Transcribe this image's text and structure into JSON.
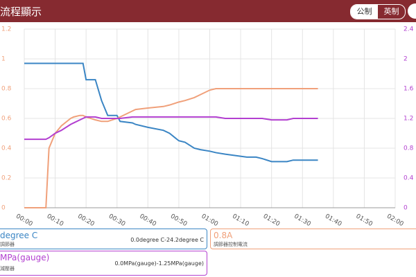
{
  "header": {
    "title": "流程顯示",
    "buttons": [
      "公制",
      "英制"
    ]
  },
  "chart_data": {
    "type": "line",
    "x": [
      0,
      7,
      8,
      10,
      12,
      15,
      16,
      18,
      19,
      20,
      23,
      25,
      27,
      30,
      31,
      35,
      36,
      40,
      45,
      47,
      50,
      52,
      55,
      57,
      60,
      62,
      65,
      72,
      75,
      77,
      80,
      83,
      85,
      87,
      95
    ],
    "xlim": [
      0,
      120
    ],
    "xticks": [
      {
        "value": 0,
        "label": "00:00"
      },
      {
        "value": 10,
        "label": "00:10"
      },
      {
        "value": 20,
        "label": "00:20"
      },
      {
        "value": 30,
        "label": "00:30"
      },
      {
        "value": 40,
        "label": "00:40"
      },
      {
        "value": 50,
        "label": "00:50"
      },
      {
        "value": 60,
        "label": "01:00"
      },
      {
        "value": 70,
        "label": "01:10"
      },
      {
        "value": 80,
        "label": "01:20"
      },
      {
        "value": 90,
        "label": "01:30"
      },
      {
        "value": 100,
        "label": "01:40"
      },
      {
        "value": 110,
        "label": "01:50"
      },
      {
        "value": 120,
        "label": "02:00"
      }
    ],
    "ylim": [
      0,
      1.2
    ],
    "yticks": [
      0,
      0.2,
      0.4,
      0.6,
      0.8,
      1,
      1.2
    ],
    "y2lim": [
      0,
      2.4
    ],
    "y2ticks": [
      0,
      0.4,
      0.8,
      1.2,
      1.6,
      2,
      2.4
    ],
    "grid": true,
    "series": [
      {
        "name": "degree C",
        "label": "調節器",
        "range": "0.0degree C-24.2degree C",
        "color": "#3a85c4",
        "values": [
          0.97,
          0.97,
          0.97,
          0.97,
          0.97,
          0.97,
          0.97,
          0.97,
          0.97,
          0.86,
          0.86,
          0.72,
          0.62,
          0.62,
          0.58,
          0.57,
          0.56,
          0.54,
          0.52,
          0.5,
          0.45,
          0.44,
          0.4,
          0.39,
          0.38,
          0.37,
          0.36,
          0.34,
          0.34,
          0.33,
          0.31,
          0.31,
          0.31,
          0.32,
          0.32
        ]
      },
      {
        "name": "0.8A",
        "label": "調節器控制電流",
        "color": "#f0a07a",
        "values": [
          0,
          0,
          0.4,
          0.5,
          0.55,
          0.6,
          0.61,
          0.62,
          0.62,
          0.61,
          0.59,
          0.58,
          0.58,
          0.6,
          0.61,
          0.65,
          0.66,
          0.67,
          0.68,
          0.69,
          0.71,
          0.72,
          0.74,
          0.76,
          0.79,
          0.8,
          0.8,
          0.8,
          0.8,
          0.8,
          0.8,
          0.8,
          0.8,
          0.8,
          0.8
        ]
      },
      {
        "name": "MPa(gauge)",
        "label": "減壓器",
        "range": "0.0MPa(gauge)-1.25MPa(gauge)",
        "color": "#b23fd0",
        "values": [
          0.46,
          0.46,
          0.47,
          0.5,
          0.52,
          0.56,
          0.57,
          0.59,
          0.6,
          0.61,
          0.61,
          0.6,
          0.6,
          0.6,
          0.6,
          0.61,
          0.61,
          0.61,
          0.61,
          0.61,
          0.61,
          0.61,
          0.61,
          0.61,
          0.61,
          0.61,
          0.6,
          0.6,
          0.6,
          0.6,
          0.59,
          0.59,
          0.59,
          0.6,
          0.6
        ]
      }
    ]
  }
}
